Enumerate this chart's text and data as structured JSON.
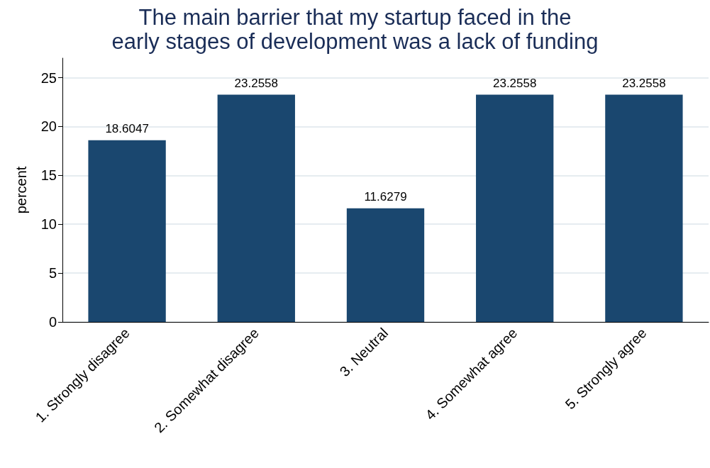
{
  "chart_data": {
    "type": "bar",
    "title": "The main barrier that my startup faced in the\nearly stages of development was a lack of funding",
    "ylabel": "percent",
    "categories": [
      "1. Strongly disagree",
      "2. Somewhat disagree",
      "3. Neutral",
      "4. Somewhat agree",
      "5. Strongly agree"
    ],
    "values": [
      18.6047,
      23.2558,
      11.6279,
      23.2558,
      23.2558
    ],
    "color": "#1a476f",
    "ylim": [
      0,
      27
    ],
    "yticks": [
      0,
      5,
      10,
      15,
      20,
      25
    ],
    "grid": "y",
    "data_labels": true
  }
}
